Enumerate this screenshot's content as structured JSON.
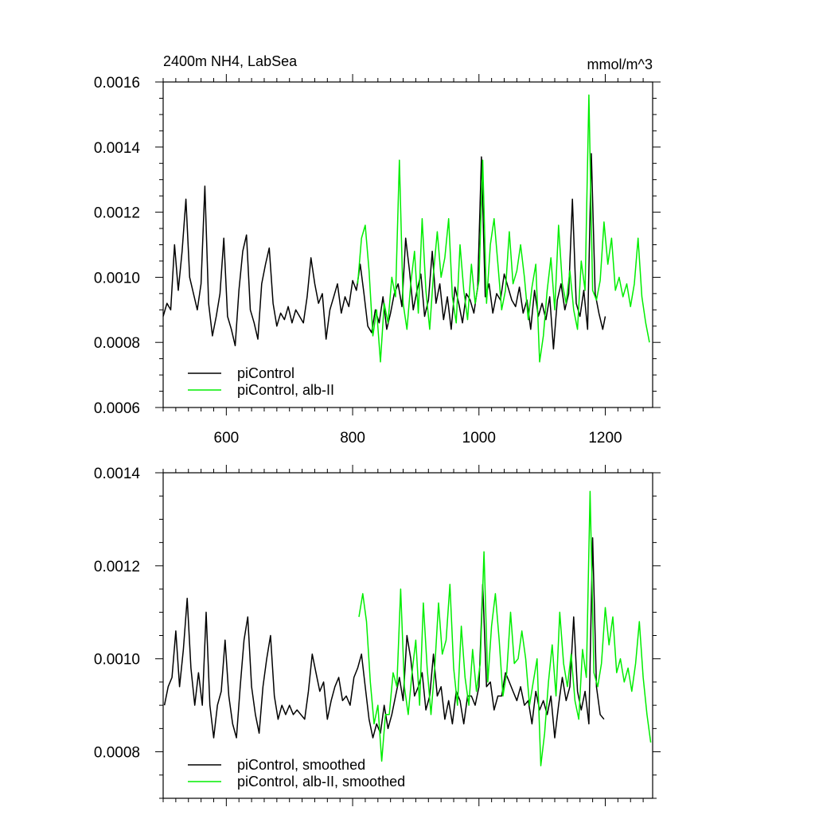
{
  "chart_data": [
    {
      "type": "line",
      "title": "2400m NH4, LabSea",
      "units": "mmol/m^3",
      "xlim": [
        500,
        1275
      ],
      "ylim": [
        0.0006,
        0.0016
      ],
      "x_ticks": [
        600,
        800,
        1000,
        1200
      ],
      "x_tick_labels": [
        "600",
        "800",
        "1000",
        "1200"
      ],
      "y_ticks": [
        0.0006,
        0.0008,
        0.001,
        0.0012,
        0.0014,
        0.0016
      ],
      "y_tick_labels": [
        "0.0006",
        "0.0008",
        "0.0010",
        "0.0012",
        "0.0014",
        "0.0016"
      ],
      "legend_position": "bottom-left",
      "series": [
        {
          "name": "piControl",
          "color": "#000000",
          "x": [
            500,
            506,
            512,
            518,
            524,
            530,
            536,
            542,
            548,
            554,
            560,
            566,
            572,
            578,
            584,
            590,
            596,
            602,
            608,
            614,
            620,
            626,
            632,
            638,
            644,
            650,
            656,
            662,
            668,
            674,
            680,
            686,
            692,
            698,
            704,
            710,
            716,
            722,
            728,
            734,
            740,
            746,
            752,
            758,
            764,
            770,
            776,
            782,
            788,
            794,
            800,
            806,
            812,
            818,
            824,
            830,
            836,
            842,
            848,
            854,
            860,
            866,
            872,
            878,
            884,
            890,
            896,
            902,
            908,
            914,
            920,
            926,
            932,
            938,
            944,
            950,
            956,
            962,
            968,
            974,
            980,
            986,
            992,
            998,
            1004,
            1010,
            1016,
            1022,
            1028,
            1034,
            1040,
            1046,
            1052,
            1058,
            1064,
            1070,
            1076,
            1082,
            1088,
            1094,
            1100,
            1106,
            1112,
            1118,
            1124,
            1130,
            1136,
            1142,
            1148,
            1154,
            1160,
            1166,
            1172,
            1178,
            1184,
            1190,
            1196,
            1200
          ],
          "values": [
            0.00088,
            0.00092,
            0.0009,
            0.0011,
            0.00096,
            0.00108,
            0.00124,
            0.001,
            0.00095,
            0.0009,
            0.00098,
            0.00128,
            0.00092,
            0.00082,
            0.00088,
            0.00095,
            0.00112,
            0.00088,
            0.00084,
            0.00079,
            0.00096,
            0.00108,
            0.00113,
            0.0009,
            0.00086,
            0.00081,
            0.00098,
            0.00104,
            0.00109,
            0.00092,
            0.00085,
            0.00089,
            0.00087,
            0.00091,
            0.00086,
            0.0009,
            0.00088,
            0.00086,
            0.00094,
            0.00106,
            0.00098,
            0.00092,
            0.00095,
            0.00081,
            0.0009,
            0.00094,
            0.00098,
            0.00089,
            0.00094,
            0.00091,
            0.00099,
            0.00096,
            0.00104,
            0.00095,
            0.00085,
            0.00083,
            0.0009,
            0.00086,
            0.00094,
            0.00084,
            0.00089,
            0.00095,
            0.00098,
            0.00091,
            0.00112,
            0.00102,
            0.0009,
            0.00096,
            0.00101,
            0.00088,
            0.00093,
            0.00108,
            0.00092,
            0.00098,
            0.00087,
            0.00094,
            0.00084,
            0.00097,
            0.00092,
            0.00086,
            0.00095,
            0.00093,
            0.00089,
            0.00097,
            0.00137,
            0.00094,
            0.00098,
            0.00089,
            0.00095,
            0.00093,
            0.00101,
            0.00097,
            0.00093,
            0.00091,
            0.00097,
            0.00089,
            0.00093,
            0.00084,
            0.00096,
            0.00088,
            0.00092,
            0.00087,
            0.00094,
            0.00078,
            0.00093,
            0.00098,
            0.0009,
            0.00095,
            0.00124,
            0.00092,
            0.00088,
            0.00096,
            0.00084,
            0.00138,
            0.00095,
            0.00089,
            0.00084,
            0.00088
          ]
        },
        {
          "name": "piControl, alb-II",
          "color": "#00ee00",
          "x": [
            808,
            814,
            820,
            826,
            832,
            838,
            844,
            850,
            856,
            862,
            868,
            874,
            880,
            886,
            892,
            898,
            904,
            910,
            916,
            922,
            928,
            934,
            940,
            946,
            952,
            958,
            964,
            970,
            976,
            982,
            988,
            994,
            1000,
            1006,
            1012,
            1018,
            1024,
            1030,
            1036,
            1042,
            1048,
            1054,
            1060,
            1066,
            1072,
            1078,
            1084,
            1090,
            1096,
            1102,
            1108,
            1114,
            1120,
            1126,
            1132,
            1138,
            1144,
            1150,
            1156,
            1162,
            1168,
            1174,
            1180,
            1186,
            1192,
            1198,
            1204,
            1210,
            1216,
            1222,
            1228,
            1234,
            1240,
            1246,
            1252,
            1258,
            1264,
            1270
          ],
          "values": [
            0.00098,
            0.00112,
            0.00116,
            0.00102,
            0.00082,
            0.0009,
            0.00074,
            0.00092,
            0.00086,
            0.001,
            0.00094,
            0.00136,
            0.00092,
            0.00084,
            0.00098,
            0.00108,
            0.00089,
            0.00118,
            0.00096,
            0.00084,
            0.00101,
            0.00114,
            0.001,
            0.00106,
            0.00118,
            0.00094,
            0.00086,
            0.0011,
            0.00096,
            0.00087,
            0.00104,
            0.00092,
            0.00099,
            0.00136,
            0.00092,
            0.0011,
            0.00118,
            0.00104,
            0.0009,
            0.00096,
            0.00114,
            0.00098,
            0.00102,
            0.0011,
            0.001,
            0.00087,
            0.00097,
            0.00104,
            0.00074,
            0.00082,
            0.00096,
            0.00106,
            0.0009,
            0.00116,
            0.00098,
            0.00092,
            0.00102,
            0.0009,
            0.00084,
            0.00105,
            0.00096,
            0.00156,
            0.00096,
            0.00093,
            0.00099,
            0.00117,
            0.00104,
            0.00112,
            0.00096,
            0.001,
            0.00094,
            0.00098,
            0.00091,
            0.00098,
            0.00112,
            0.00094,
            0.00086,
            0.0008
          ]
        }
      ]
    },
    {
      "type": "line",
      "xlim": [
        500,
        1275
      ],
      "ylim": [
        0.0007,
        0.0014
      ],
      "x_ticks": [
        600,
        800,
        1000,
        1200
      ],
      "y_ticks": [
        0.0008,
        0.001,
        0.0012,
        0.0014
      ],
      "y_tick_labels": [
        "0.0008",
        "0.0010",
        "0.0012",
        "0.0014"
      ],
      "legend_position": "bottom-left",
      "series": [
        {
          "name": "piControl, smoothed",
          "color": "#000000",
          "x": [
            502,
            508,
            514,
            520,
            526,
            532,
            538,
            544,
            550,
            556,
            562,
            568,
            574,
            580,
            586,
            592,
            598,
            604,
            610,
            616,
            622,
            628,
            634,
            640,
            646,
            652,
            658,
            664,
            670,
            676,
            682,
            688,
            694,
            700,
            706,
            712,
            718,
            724,
            730,
            736,
            742,
            748,
            754,
            760,
            766,
            772,
            778,
            784,
            790,
            796,
            802,
            808,
            814,
            820,
            826,
            832,
            838,
            844,
            850,
            856,
            862,
            868,
            874,
            880,
            886,
            892,
            898,
            904,
            910,
            916,
            922,
            928,
            934,
            940,
            946,
            952,
            958,
            964,
            970,
            976,
            982,
            988,
            994,
            1000,
            1006,
            1012,
            1018,
            1024,
            1030,
            1036,
            1042,
            1048,
            1054,
            1060,
            1066,
            1072,
            1078,
            1084,
            1090,
            1096,
            1102,
            1108,
            1114,
            1120,
            1126,
            1132,
            1138,
            1144,
            1150,
            1156,
            1162,
            1168,
            1174,
            1180,
            1186,
            1192,
            1198
          ],
          "values": [
            0.0009,
            0.00094,
            0.00096,
            0.00106,
            0.00094,
            0.00102,
            0.00113,
            0.00098,
            0.0009,
            0.00097,
            0.0009,
            0.0011,
            0.0009,
            0.00083,
            0.0009,
            0.00093,
            0.00104,
            0.00092,
            0.00086,
            0.00083,
            0.00094,
            0.00104,
            0.00109,
            0.00094,
            0.00088,
            0.00084,
            0.00094,
            0.001,
            0.00105,
            0.00092,
            0.00087,
            0.0009,
            0.00088,
            0.0009,
            0.00088,
            0.00089,
            0.00088,
            0.00087,
            0.00093,
            0.00101,
            0.00097,
            0.00093,
            0.00095,
            0.00087,
            0.00091,
            0.00094,
            0.00096,
            0.00091,
            0.00092,
            0.0009,
            0.00096,
            0.00098,
            0.00101,
            0.00094,
            0.00087,
            0.00083,
            0.00086,
            0.00084,
            0.0009,
            0.00085,
            0.00088,
            0.00092,
            0.00096,
            0.00091,
            0.00105,
            0.001,
            0.00092,
            0.00094,
            0.00097,
            0.00089,
            0.00092,
            0.00101,
            0.00092,
            0.00094,
            0.00087,
            0.00091,
            0.00086,
            0.00093,
            0.00091,
            0.00086,
            0.00092,
            0.00092,
            0.0009,
            0.00094,
            0.00116,
            0.00094,
            0.00095,
            0.00089,
            0.00092,
            0.00092,
            0.00097,
            0.00095,
            0.00093,
            0.00091,
            0.00094,
            0.0009,
            0.00091,
            0.00086,
            0.00093,
            0.00089,
            0.00091,
            0.00088,
            0.00092,
            0.00083,
            0.0009,
            0.00096,
            0.00091,
            0.00094,
            0.00109,
            0.00093,
            0.00089,
            0.00093,
            0.00086,
            0.00126,
            0.00094,
            0.00088,
            0.00087
          ]
        },
        {
          "name": "piControl, alb-II, smoothed",
          "color": "#00ee00",
          "x": [
            810,
            816,
            822,
            828,
            834,
            840,
            846,
            852,
            858,
            864,
            870,
            876,
            882,
            888,
            894,
            900,
            906,
            912,
            918,
            924,
            930,
            936,
            942,
            948,
            954,
            960,
            966,
            972,
            978,
            984,
            990,
            996,
            1002,
            1008,
            1014,
            1020,
            1026,
            1032,
            1038,
            1044,
            1050,
            1056,
            1062,
            1068,
            1074,
            1080,
            1086,
            1092,
            1098,
            1104,
            1110,
            1116,
            1122,
            1128,
            1134,
            1140,
            1146,
            1152,
            1158,
            1164,
            1170,
            1176,
            1182,
            1188,
            1194,
            1200,
            1206,
            1212,
            1218,
            1224,
            1230,
            1236,
            1242,
            1248,
            1254,
            1260,
            1266,
            1272
          ],
          "values": [
            0.00109,
            0.00114,
            0.00108,
            0.00095,
            0.00086,
            0.0009,
            0.00078,
            0.00088,
            0.00088,
            0.00097,
            0.00094,
            0.00115,
            0.00094,
            0.00088,
            0.00097,
            0.00104,
            0.0009,
            0.00112,
            0.00098,
            0.00088,
            0.00098,
            0.00112,
            0.00101,
            0.00104,
            0.00116,
            0.00098,
            0.0009,
            0.00107,
            0.00096,
            0.0009,
            0.00102,
            0.00093,
            0.00099,
            0.00123,
            0.00095,
            0.00107,
            0.00114,
            0.00104,
            0.00092,
            0.00097,
            0.0011,
            0.00099,
            0.001,
            0.00106,
            0.001,
            0.0009,
            0.00095,
            0.001,
            0.00077,
            0.00084,
            0.00095,
            0.00103,
            0.00092,
            0.0011,
            0.00099,
            0.00094,
            0.00101,
            0.00091,
            0.00087,
            0.00102,
            0.00096,
            0.00136,
            0.00097,
            0.00094,
            0.00099,
            0.00111,
            0.00103,
            0.00109,
            0.00097,
            0.001,
            0.00095,
            0.00098,
            0.00093,
            0.00099,
            0.00108,
            0.00096,
            0.00088,
            0.00082
          ]
        }
      ]
    }
  ]
}
